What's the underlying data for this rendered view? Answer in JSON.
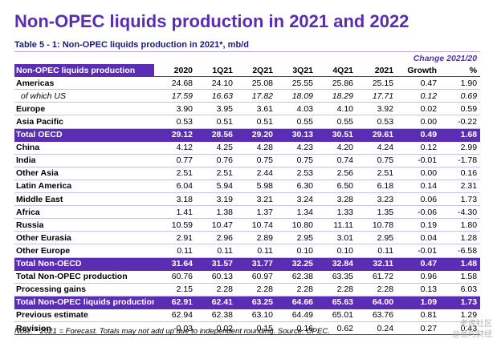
{
  "title": "Non-OPEC liquids production in 2021 and 2022",
  "subtitle": "Table 5 - 1: Non-OPEC liquids production in 2021*, mb/d",
  "change_header": "Change 2021/20",
  "columns": [
    "Non-OPEC liquids production",
    "2020",
    "1Q21",
    "2Q21",
    "3Q21",
    "4Q21",
    "2021",
    "Growth",
    "%"
  ],
  "rows": [
    {
      "label": "Americas",
      "values": [
        "24.68",
        "24.10",
        "25.08",
        "25.55",
        "25.86",
        "25.15",
        "0.47",
        "1.90"
      ],
      "style": "bold"
    },
    {
      "label": "of which US",
      "values": [
        "17.59",
        "16.63",
        "17.82",
        "18.09",
        "18.29",
        "17.71",
        "0.12",
        "0.69"
      ],
      "style": "italic"
    },
    {
      "label": "Europe",
      "values": [
        "3.90",
        "3.95",
        "3.61",
        "4.03",
        "4.10",
        "3.92",
        "0.02",
        "0.59"
      ],
      "style": "bold"
    },
    {
      "label": "Asia Pacific",
      "values": [
        "0.53",
        "0.51",
        "0.51",
        "0.55",
        "0.55",
        "0.53",
        "0.00",
        "-0.22"
      ],
      "style": "bold"
    },
    {
      "label": "Total OECD",
      "values": [
        "29.12",
        "28.56",
        "29.20",
        "30.13",
        "30.51",
        "29.61",
        "0.49",
        "1.68"
      ],
      "style": "total"
    },
    {
      "label": "China",
      "values": [
        "4.12",
        "4.25",
        "4.28",
        "4.23",
        "4.20",
        "4.24",
        "0.12",
        "2.99"
      ],
      "style": "bold"
    },
    {
      "label": "India",
      "values": [
        "0.77",
        "0.76",
        "0.75",
        "0.75",
        "0.74",
        "0.75",
        "-0.01",
        "-1.78"
      ],
      "style": "bold"
    },
    {
      "label": "Other Asia",
      "values": [
        "2.51",
        "2.51",
        "2.44",
        "2.53",
        "2.56",
        "2.51",
        "0.00",
        "0.16"
      ],
      "style": "bold"
    },
    {
      "label": "Latin America",
      "values": [
        "6.04",
        "5.94",
        "5.98",
        "6.30",
        "6.50",
        "6.18",
        "0.14",
        "2.31"
      ],
      "style": "bold"
    },
    {
      "label": "Middle East",
      "values": [
        "3.18",
        "3.19",
        "3.21",
        "3.24",
        "3.28",
        "3.23",
        "0.06",
        "1.73"
      ],
      "style": "bold"
    },
    {
      "label": "Africa",
      "values": [
        "1.41",
        "1.38",
        "1.37",
        "1.34",
        "1.33",
        "1.35",
        "-0.06",
        "-4.30"
      ],
      "style": "bold"
    },
    {
      "label": "Russia",
      "values": [
        "10.59",
        "10.47",
        "10.74",
        "10.80",
        "11.11",
        "10.78",
        "0.19",
        "1.80"
      ],
      "style": "bold"
    },
    {
      "label": "Other Eurasia",
      "values": [
        "2.91",
        "2.96",
        "2.89",
        "2.95",
        "3.01",
        "2.95",
        "0.04",
        "1.28"
      ],
      "style": "bold"
    },
    {
      "label": "Other Europe",
      "values": [
        "0.11",
        "0.11",
        "0.11",
        "0.10",
        "0.10",
        "0.11",
        "-0.01",
        "-6.58"
      ],
      "style": "bold"
    },
    {
      "label": "Total Non-OECD",
      "values": [
        "31.64",
        "31.57",
        "31.77",
        "32.25",
        "32.84",
        "32.11",
        "0.47",
        "1.48"
      ],
      "style": "total"
    },
    {
      "label": "Total Non-OPEC production",
      "values": [
        "60.76",
        "60.13",
        "60.97",
        "62.38",
        "63.35",
        "61.72",
        "0.96",
        "1.58"
      ],
      "style": "bold"
    },
    {
      "label": "Processing gains",
      "values": [
        "2.15",
        "2.28",
        "2.28",
        "2.28",
        "2.28",
        "2.28",
        "0.13",
        "6.03"
      ],
      "style": "bold"
    },
    {
      "label": "Total Non-OPEC liquids production",
      "values": [
        "62.91",
        "62.41",
        "63.25",
        "64.66",
        "65.63",
        "64.00",
        "1.09",
        "1.73"
      ],
      "style": "total"
    },
    {
      "label": "Previous estimate",
      "values": [
        "62.94",
        "62.38",
        "63.10",
        "64.49",
        "65.01",
        "63.76",
        "0.81",
        "1.29"
      ],
      "style": "bold"
    },
    {
      "label": "Revision",
      "values": [
        "-0.03",
        "0.02",
        "0.15",
        "0.16",
        "0.62",
        "0.24",
        "0.27",
        "0.43"
      ],
      "style": "bold"
    }
  ],
  "note": "Note: * 2021 = Forecast. Totals may not add up due to independent rounding. Source: OPEC.",
  "watermark": [
    "老虎社区",
    "@金时财经"
  ]
}
